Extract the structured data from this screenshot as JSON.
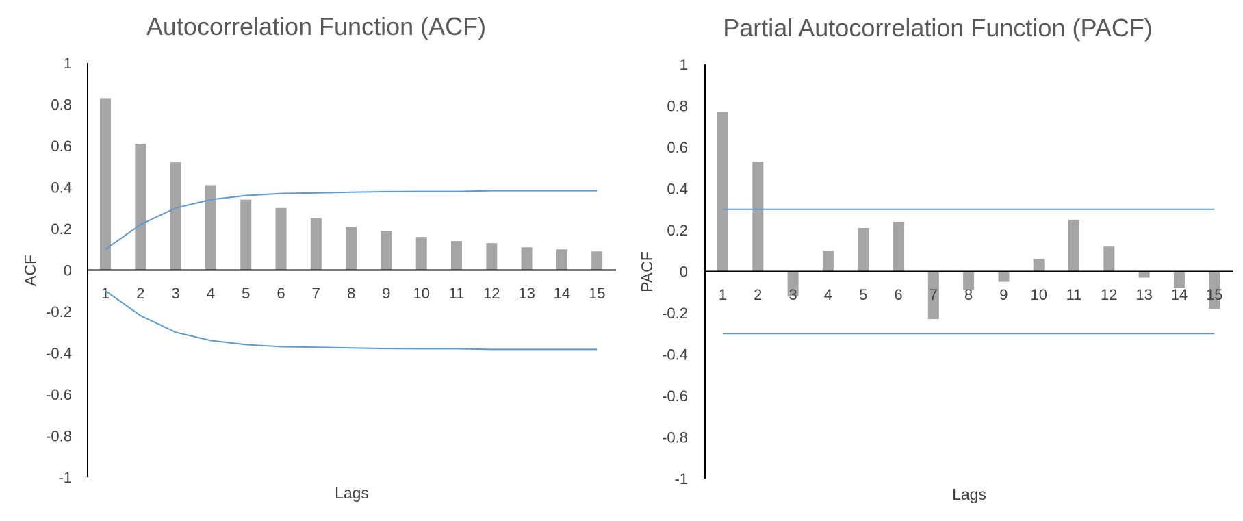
{
  "colors": {
    "bar": "#a5a5a5",
    "bound_line": "#5b9bd5",
    "axis": "#000000",
    "title_text": "#595959",
    "label_text": "#404040",
    "background": "#ffffff"
  },
  "chart_data": [
    {
      "type": "bar",
      "title": "Autocorrelation Function (ACF)",
      "xlabel": "Lags",
      "ylabel": "ACF",
      "ylim": [
        -1,
        1
      ],
      "yticks": [
        1,
        0.8,
        0.6,
        0.4,
        0.2,
        0,
        -0.2,
        -0.4,
        -0.6,
        -0.8,
        -1
      ],
      "ytick_labels": [
        "1",
        "0.8",
        "0.6",
        "0.4",
        "0.2",
        "0",
        "-0.2",
        "-0.4",
        "-0.6",
        "-0.8",
        "-1"
      ],
      "grid": false,
      "legend": "none",
      "categories": [
        "1",
        "2",
        "3",
        "4",
        "5",
        "6",
        "7",
        "8",
        "9",
        "10",
        "11",
        "12",
        "13",
        "14",
        "15"
      ],
      "series": [
        {
          "type": "bar",
          "values": [
            0.83,
            0.61,
            0.52,
            0.41,
            0.34,
            0.3,
            0.25,
            0.21,
            0.19,
            0.16,
            0.14,
            0.13,
            0.11,
            0.1,
            0.09
          ]
        },
        {
          "type": "line",
          "values": [
            0.1,
            0.22,
            0.3,
            0.34,
            0.36,
            0.37,
            0.373,
            0.376,
            0.379,
            0.38,
            0.38,
            0.383,
            0.383,
            0.383,
            0.383
          ]
        },
        {
          "type": "line",
          "values": [
            -0.1,
            -0.22,
            -0.3,
            -0.34,
            -0.36,
            -0.37,
            -0.373,
            -0.376,
            -0.379,
            -0.38,
            -0.38,
            -0.383,
            -0.383,
            -0.383,
            -0.383
          ]
        }
      ]
    },
    {
      "type": "bar",
      "title": "Partial Autocorrelation Function (PACF)",
      "xlabel": "Lags",
      "ylabel": "PACF",
      "ylim": [
        -1,
        1
      ],
      "yticks": [
        1,
        0.8,
        0.6,
        0.4,
        0.2,
        0,
        -0.2,
        -0.4,
        -0.6,
        -0.8,
        -1
      ],
      "ytick_labels": [
        "1",
        "0.8",
        "0.6",
        "0.4",
        "0.2",
        "0",
        "-0.2",
        "-0.4",
        "-0.6",
        "-0.8",
        "-1"
      ],
      "grid": false,
      "legend": "none",
      "categories": [
        "1",
        "2",
        "3",
        "4",
        "5",
        "6",
        "7",
        "8",
        "9",
        "10",
        "11",
        "12",
        "13",
        "14",
        "15"
      ],
      "series": [
        {
          "type": "bar",
          "values": [
            0.77,
            0.53,
            -0.12,
            0.1,
            0.21,
            0.24,
            -0.23,
            -0.09,
            -0.05,
            0.06,
            0.25,
            0.12,
            -0.03,
            -0.08,
            -0.18
          ]
        },
        {
          "type": "line",
          "values": [
            0.3,
            0.3,
            0.3,
            0.3,
            0.3,
            0.3,
            0.3,
            0.3,
            0.3,
            0.3,
            0.3,
            0.3,
            0.3,
            0.3,
            0.3
          ]
        },
        {
          "type": "line",
          "values": [
            -0.3,
            -0.3,
            -0.3,
            -0.3,
            -0.3,
            -0.3,
            -0.3,
            -0.3,
            -0.3,
            -0.3,
            -0.3,
            -0.3,
            -0.3,
            -0.3,
            -0.3
          ]
        }
      ]
    }
  ]
}
